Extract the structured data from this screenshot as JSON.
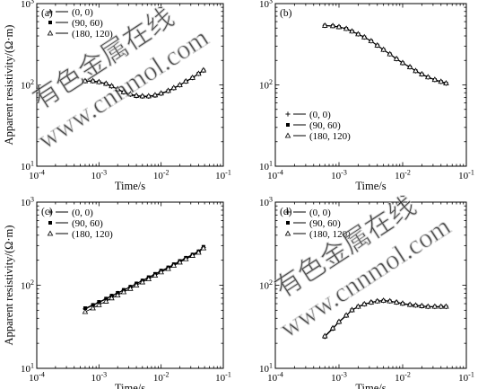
{
  "figure": {
    "x_axis_label": "Time/s",
    "y_axis_label": "Apparent resistivity/(Ω·m)",
    "tick_labels": {
      "x": [
        {
          "base": "10",
          "exp": "-4",
          "value": 0.0001
        },
        {
          "base": "10",
          "exp": "-3",
          "value": 0.001
        },
        {
          "base": "10",
          "exp": "-2",
          "value": 0.01
        },
        {
          "base": "10",
          "exp": "-1",
          "value": 0.1
        }
      ],
      "y": [
        {
          "base": "10",
          "exp": "1",
          "value": 10
        },
        {
          "base": "10",
          "exp": "2",
          "value": 100
        },
        {
          "base": "10",
          "exp": "3",
          "value": 1000
        }
      ]
    },
    "colors": {
      "line": "#000000",
      "axis": "#000000",
      "watermark": "#c4c4c4",
      "background": "#ffffff"
    }
  },
  "watermark": {
    "cn_text": "有色金属在线",
    "url_text": "www.cnnmol.com"
  },
  "chart_data": [
    {
      "type": "line",
      "panel": "(a)",
      "xscale": "log",
      "yscale": "log",
      "xlim": [
        0.0001,
        0.1
      ],
      "ylim": [
        10,
        1000
      ],
      "xlabel": "Time/s",
      "ylabel": "Apparent resistivity/(Ω·m)",
      "legend_position": "top-left",
      "series": [
        {
          "name": "(0, 0)",
          "marker": "plus",
          "x": [
            0.0006,
            0.0008,
            0.001,
            0.0013,
            0.0016,
            0.002,
            0.0025,
            0.0032,
            0.004,
            0.005,
            0.0063,
            0.008,
            0.01,
            0.013,
            0.016,
            0.02,
            0.025,
            0.032,
            0.04,
            0.048
          ],
          "y": [
            111,
            111,
            108,
            103,
            96,
            88,
            81,
            76,
            73,
            72,
            72,
            74,
            78,
            84,
            91,
            99,
            110,
            122,
            137,
            150
          ]
        },
        {
          "name": "(90, 60)",
          "marker": "square",
          "x": [
            0.0006,
            0.0008,
            0.001,
            0.0013,
            0.0016,
            0.002,
            0.0025,
            0.0032,
            0.004,
            0.005,
            0.0063,
            0.008,
            0.01,
            0.013,
            0.016,
            0.02,
            0.025,
            0.032,
            0.04,
            0.048
          ],
          "y": [
            111,
            111,
            108,
            103,
            96,
            88,
            81,
            76,
            73,
            72,
            72,
            74,
            78,
            84,
            91,
            99,
            110,
            122,
            137,
            150
          ]
        },
        {
          "name": "(180, 120)",
          "marker": "triangle",
          "x": [
            0.0006,
            0.0008,
            0.001,
            0.0013,
            0.0016,
            0.002,
            0.0025,
            0.0032,
            0.004,
            0.005,
            0.0063,
            0.008,
            0.01,
            0.013,
            0.016,
            0.02,
            0.025,
            0.032,
            0.04,
            0.048
          ],
          "y": [
            112,
            112,
            109,
            104,
            97,
            89,
            82,
            77,
            74,
            73,
            73,
            75,
            79,
            85,
            92,
            100,
            111,
            123,
            138,
            152
          ]
        }
      ]
    },
    {
      "type": "line",
      "panel": "(b)",
      "xscale": "log",
      "yscale": "log",
      "xlim": [
        0.0001,
        0.1
      ],
      "ylim": [
        10,
        1000
      ],
      "xlabel": "Time/s",
      "ylabel": "",
      "legend_position": "bottom-left",
      "series": [
        {
          "name": "(0, 0)",
          "marker": "plus",
          "x": [
            0.0006,
            0.0008,
            0.001,
            0.0013,
            0.0016,
            0.002,
            0.0025,
            0.0032,
            0.004,
            0.005,
            0.0063,
            0.008,
            0.01,
            0.013,
            0.016,
            0.02,
            0.025,
            0.032,
            0.04,
            0.048
          ],
          "y": [
            535,
            530,
            515,
            490,
            455,
            420,
            385,
            345,
            305,
            270,
            238,
            208,
            185,
            165,
            148,
            135,
            124,
            115,
            109,
            104
          ]
        },
        {
          "name": "(90, 60)",
          "marker": "square",
          "x": [
            0.0006,
            0.0008,
            0.001,
            0.0013,
            0.0016,
            0.002,
            0.0025,
            0.0032,
            0.004,
            0.005,
            0.0063,
            0.008,
            0.01,
            0.013,
            0.016,
            0.02,
            0.025,
            0.032,
            0.04,
            0.048
          ],
          "y": [
            535,
            530,
            515,
            490,
            455,
            420,
            385,
            345,
            305,
            270,
            238,
            208,
            185,
            165,
            148,
            135,
            124,
            115,
            109,
            104
          ]
        },
        {
          "name": "(180, 120)",
          "marker": "triangle",
          "x": [
            0.0006,
            0.0008,
            0.001,
            0.0013,
            0.0016,
            0.002,
            0.0025,
            0.0032,
            0.004,
            0.005,
            0.0063,
            0.008,
            0.01,
            0.013,
            0.016,
            0.02,
            0.025,
            0.032,
            0.04,
            0.048
          ],
          "y": [
            537,
            532,
            517,
            492,
            457,
            422,
            387,
            347,
            307,
            272,
            240,
            210,
            187,
            166,
            149,
            136,
            125,
            116,
            110,
            105
          ]
        }
      ]
    },
    {
      "type": "line",
      "panel": "(c)",
      "xscale": "log",
      "yscale": "log",
      "xlim": [
        0.0001,
        0.1
      ],
      "ylim": [
        10,
        1000
      ],
      "xlabel": "Time/s",
      "ylabel": "Apparent resistivity/(Ω·m)",
      "legend_position": "top-left",
      "series": [
        {
          "name": "(0, 0)",
          "marker": "plus",
          "x": [
            0.0006,
            0.0008,
            0.001,
            0.0013,
            0.0016,
            0.002,
            0.0025,
            0.0032,
            0.004,
            0.005,
            0.0063,
            0.008,
            0.01,
            0.013,
            0.016,
            0.02,
            0.025,
            0.032,
            0.04,
            0.048
          ],
          "y": [
            52,
            57,
            62,
            68,
            74,
            80,
            87,
            95,
            104,
            113,
            123,
            135,
            148,
            162,
            177,
            193,
            211,
            231,
            252,
            285
          ]
        },
        {
          "name": "(90, 60)",
          "marker": "square",
          "x": [
            0.0006,
            0.0008,
            0.001,
            0.0013,
            0.0016,
            0.002,
            0.0025,
            0.0032,
            0.004,
            0.005,
            0.0063,
            0.008,
            0.01,
            0.013,
            0.016,
            0.02,
            0.025,
            0.032,
            0.04,
            0.048
          ],
          "y": [
            53,
            58,
            63,
            69,
            75,
            81,
            88,
            96,
            105,
            114,
            125,
            137,
            150,
            164,
            179,
            196,
            214,
            234,
            256,
            290
          ]
        },
        {
          "name": "(180, 120)",
          "marker": "triangle",
          "x": [
            0.0006,
            0.0008,
            0.001,
            0.0013,
            0.0016,
            0.002,
            0.0025,
            0.0032,
            0.004,
            0.005,
            0.0063,
            0.008,
            0.01,
            0.013,
            0.016,
            0.02,
            0.025,
            0.032,
            0.04,
            0.048
          ],
          "y": [
            48,
            53,
            58,
            64,
            70,
            76,
            83,
            91,
            100,
            109,
            119,
            131,
            144,
            158,
            173,
            189,
            207,
            227,
            248,
            280
          ]
        }
      ]
    },
    {
      "type": "line",
      "panel": "(d)",
      "xscale": "log",
      "yscale": "log",
      "xlim": [
        0.0001,
        0.1
      ],
      "ylim": [
        10,
        1000
      ],
      "xlabel": "Time/s",
      "ylabel": "",
      "legend_position": "top-left",
      "series": [
        {
          "name": "(0, 0)",
          "marker": "plus",
          "x": [
            0.0006,
            0.0008,
            0.001,
            0.0013,
            0.0016,
            0.002,
            0.0025,
            0.0032,
            0.004,
            0.005,
            0.0063,
            0.008,
            0.01,
            0.013,
            0.016,
            0.02,
            0.025,
            0.032,
            0.04,
            0.048
          ],
          "y": [
            24,
            30,
            36,
            43,
            50,
            55,
            59,
            62,
            64,
            65,
            64,
            62,
            60,
            58,
            57,
            56,
            55,
            55,
            55,
            55
          ]
        },
        {
          "name": "(90, 60)",
          "marker": "square",
          "x": [
            0.0006,
            0.0008,
            0.001,
            0.0013,
            0.0016,
            0.002,
            0.0025,
            0.0032,
            0.004,
            0.005,
            0.0063,
            0.008,
            0.01,
            0.013,
            0.016,
            0.02,
            0.025,
            0.032,
            0.04,
            0.048
          ],
          "y": [
            24,
            30,
            36,
            43,
            50,
            55,
            59,
            62,
            64,
            65,
            64,
            62,
            60,
            58,
            57,
            56,
            55,
            55,
            55,
            55
          ]
        },
        {
          "name": "(180, 120)",
          "marker": "triangle",
          "x": [
            0.0006,
            0.0008,
            0.001,
            0.0013,
            0.0016,
            0.002,
            0.0025,
            0.0032,
            0.004,
            0.005,
            0.0063,
            0.008,
            0.01,
            0.013,
            0.016,
            0.02,
            0.025,
            0.032,
            0.04,
            0.048
          ],
          "y": [
            24.5,
            30.5,
            36.5,
            43.5,
            50.5,
            55.5,
            59.5,
            62.5,
            64.5,
            65.5,
            64.5,
            62.5,
            60.5,
            58.5,
            57.5,
            56.5,
            55.5,
            55.5,
            55.5,
            55.5
          ]
        }
      ]
    }
  ]
}
